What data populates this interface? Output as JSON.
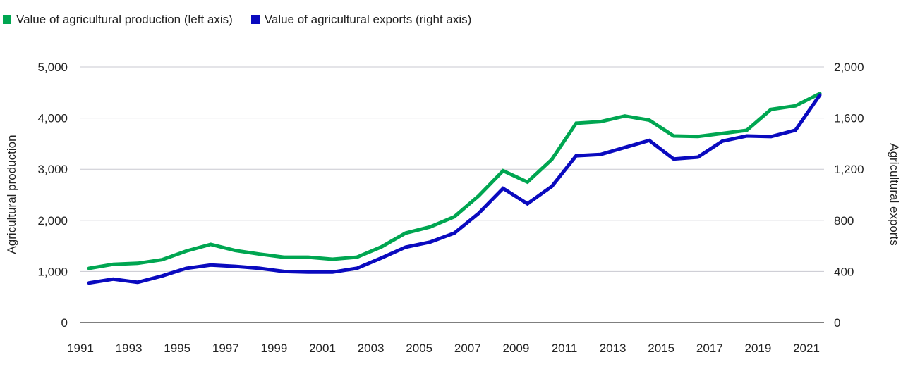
{
  "chart_data": {
    "type": "line",
    "title": "",
    "x": [
      1991,
      1992,
      1993,
      1994,
      1995,
      1996,
      1997,
      1998,
      1999,
      2000,
      2001,
      2002,
      2003,
      2004,
      2005,
      2006,
      2007,
      2008,
      2009,
      2010,
      2011,
      2012,
      2013,
      2014,
      2015,
      2016,
      2017,
      2018,
      2019,
      2020,
      2021
    ],
    "x_tick_labels": [
      "1991",
      "1993",
      "1995",
      "1997",
      "1999",
      "2001",
      "2003",
      "2005",
      "2007",
      "2009",
      "2011",
      "2013",
      "2015",
      "2017",
      "2019",
      "2021"
    ],
    "series": [
      {
        "name": "Value of agricultural production (left axis)",
        "axis": "left",
        "color": "#00a651",
        "values": [
          1060,
          1140,
          1160,
          1230,
          1400,
          1530,
          1410,
          1340,
          1280,
          1280,
          1240,
          1280,
          1480,
          1750,
          1870,
          2070,
          2480,
          2970,
          2750,
          3190,
          3900,
          3930,
          4040,
          3960,
          3650,
          3640,
          3700,
          3760,
          4170,
          4240,
          4480
        ]
      },
      {
        "name": "Value of agricultural exports (right axis)",
        "axis": "right",
        "color": "#0a0abf",
        "values": [
          310,
          340,
          315,
          365,
          425,
          450,
          440,
          425,
          400,
          395,
          395,
          425,
          505,
          590,
          630,
          700,
          855,
          1050,
          930,
          1065,
          1305,
          1315,
          1370,
          1425,
          1280,
          1295,
          1420,
          1460,
          1455,
          1505,
          1780
        ]
      }
    ],
    "left_axis": {
      "label": "Agricultural production",
      "range": [
        0,
        5000
      ],
      "ticks": [
        "0",
        "1,000",
        "2,000",
        "3,000",
        "4,000",
        "5,000"
      ],
      "tick_values": [
        0,
        1000,
        2000,
        3000,
        4000,
        5000
      ]
    },
    "right_axis": {
      "label": "Agricultural exports",
      "range": [
        0,
        2000
      ],
      "ticks": [
        "0",
        "400",
        "800",
        "1,200",
        "1,600",
        "2,000"
      ],
      "tick_values": [
        0,
        400,
        800,
        1200,
        1600,
        2000
      ]
    },
    "grid": true,
    "legend_position": "top-left"
  }
}
